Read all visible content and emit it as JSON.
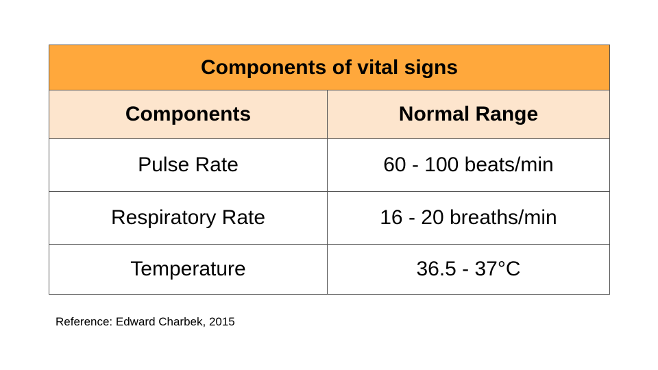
{
  "table": {
    "title": "Components of vital signs",
    "columns": [
      "Components",
      "Normal Range"
    ],
    "rows": [
      [
        "Pulse Rate",
        "60 - 100 beats/min"
      ],
      [
        "Respiratory Rate",
        "16 - 20 breaths/min"
      ],
      [
        "Temperature",
        "36.5 - 37°C"
      ]
    ]
  },
  "reference": "Reference: Edward Charbek, 2015",
  "colors": {
    "title_background": "#ffa83c",
    "header_background": "#fde5cd",
    "border": "#555555"
  }
}
